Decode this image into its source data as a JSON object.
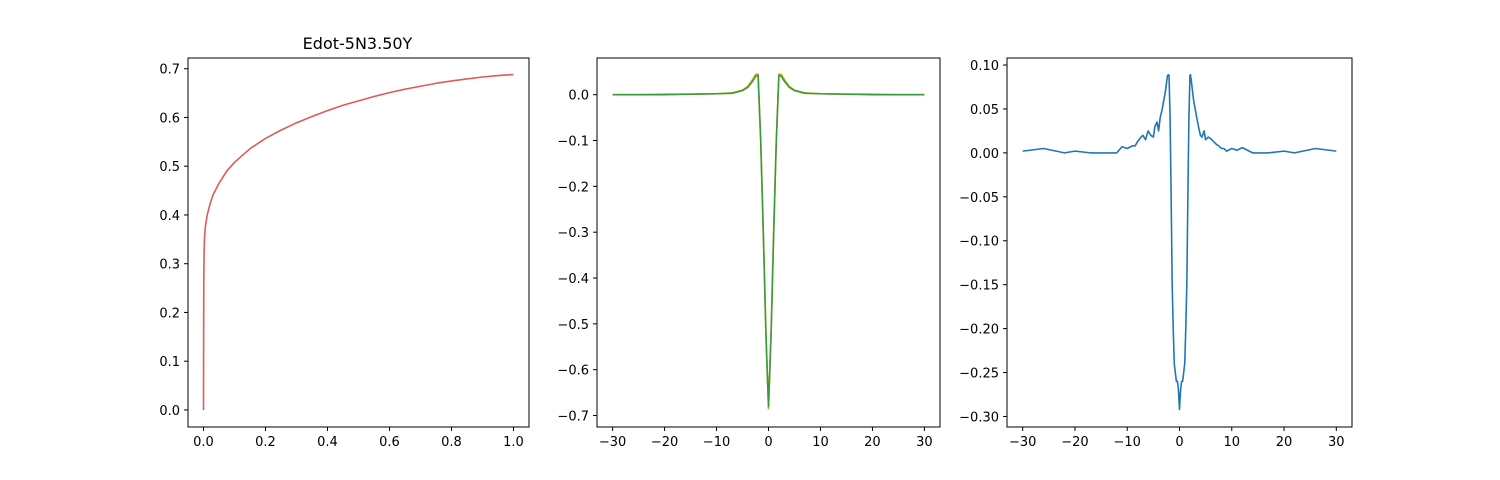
{
  "chart_data": [
    {
      "type": "line",
      "title": "Edot-5N3.50Y",
      "xlim": [
        -0.05,
        1.05
      ],
      "ylim": [
        -0.035,
        0.722
      ],
      "xticks": [
        0.0,
        0.2,
        0.4,
        0.6,
        0.8,
        1.0
      ],
      "xtick_labels": [
        "0.0",
        "0.2",
        "0.4",
        "0.6",
        "0.8",
        "1.0"
      ],
      "yticks": [
        0.0,
        0.1,
        0.2,
        0.3,
        0.4,
        0.5,
        0.6,
        0.7
      ],
      "ytick_labels": [
        "0.0",
        "0.1",
        "0.2",
        "0.3",
        "0.4",
        "0.5",
        "0.6",
        "0.7"
      ],
      "series": [
        {
          "color": "#e05a5a",
          "x": [
            0.0,
            0.0005,
            0.001,
            0.002,
            0.003,
            0.005,
            0.008,
            0.012,
            0.02,
            0.03,
            0.05,
            0.075,
            0.1,
            0.15,
            0.2,
            0.25,
            0.3,
            0.35,
            0.4,
            0.45,
            0.5,
            0.55,
            0.6,
            0.65,
            0.7,
            0.75,
            0.8,
            0.85,
            0.9,
            0.95,
            1.0
          ],
          "y": [
            0.0,
            0.18,
            0.27,
            0.325,
            0.35,
            0.37,
            0.385,
            0.4,
            0.42,
            0.44,
            0.465,
            0.49,
            0.508,
            0.536,
            0.557,
            0.574,
            0.589,
            0.602,
            0.614,
            0.625,
            0.634,
            0.643,
            0.651,
            0.658,
            0.664,
            0.67,
            0.675,
            0.679,
            0.683,
            0.686,
            0.688
          ]
        }
      ]
    },
    {
      "type": "line",
      "xlim": [
        -33.0,
        33.0
      ],
      "ylim": [
        -0.725,
        0.08
      ],
      "xticks": [
        -30,
        -20,
        -10,
        0,
        10,
        20,
        30
      ],
      "xtick_labels": [
        "−30",
        "−20",
        "−10",
        "0",
        "10",
        "20",
        "30"
      ],
      "yticks": [
        0.0,
        -0.1,
        -0.2,
        -0.3,
        -0.4,
        -0.5,
        -0.6,
        -0.7
      ],
      "ytick_labels": [
        "0.0",
        "−0.1",
        "−0.2",
        "−0.3",
        "−0.4",
        "−0.5",
        "−0.6",
        "−0.7"
      ],
      "series": [
        {
          "color": "#d6a51a",
          "x": [
            -30,
            -25,
            -20,
            -15,
            -10,
            -7,
            -5,
            -4,
            -3,
            -2.5,
            -2,
            -1.5,
            -1,
            -0.5,
            0,
            0.5,
            1,
            1.5,
            2,
            2.5,
            3,
            4,
            5,
            7,
            10,
            15,
            20,
            25,
            30
          ],
          "y": [
            0.0,
            0.0,
            0.001,
            0.001,
            0.002,
            0.004,
            0.01,
            0.018,
            0.034,
            0.044,
            0.045,
            -0.1,
            -0.3,
            -0.52,
            -0.685,
            -0.52,
            -0.3,
            -0.1,
            0.045,
            0.044,
            0.034,
            0.018,
            0.01,
            0.004,
            0.002,
            0.001,
            0.001,
            0.0,
            0.0
          ]
        },
        {
          "color": "#3a9a3a",
          "x": [
            -30,
            -25,
            -20,
            -15,
            -10,
            -7,
            -5,
            -4,
            -3,
            -2.5,
            -2,
            -1.5,
            -1,
            -0.5,
            0,
            0.5,
            1,
            1.5,
            2,
            2.5,
            3,
            4,
            5,
            7,
            10,
            15,
            20,
            25,
            30
          ],
          "y": [
            0.0,
            0.0,
            0.0,
            0.001,
            0.002,
            0.003,
            0.009,
            0.016,
            0.03,
            0.04,
            0.042,
            -0.1,
            -0.3,
            -0.52,
            -0.68,
            -0.52,
            -0.3,
            -0.1,
            0.042,
            0.04,
            0.03,
            0.016,
            0.009,
            0.003,
            0.002,
            0.001,
            0.0,
            0.0,
            0.0
          ]
        }
      ]
    },
    {
      "type": "line",
      "xlim": [
        -33.0,
        33.0
      ],
      "ylim": [
        -0.312,
        0.108
      ],
      "xticks": [
        -30,
        -20,
        -10,
        0,
        10,
        20,
        30
      ],
      "xtick_labels": [
        "−30",
        "−20",
        "−10",
        "0",
        "10",
        "20",
        "30"
      ],
      "yticks": [
        0.1,
        0.05,
        0.0,
        -0.05,
        -0.1,
        -0.15,
        -0.2,
        -0.25,
        -0.3
      ],
      "ytick_labels": [
        "0.10",
        "0.05",
        "0.00",
        "−0.05",
        "−0.10",
        "−0.15",
        "−0.20",
        "−0.25",
        "−0.30"
      ],
      "series": [
        {
          "color": "#1f77b4",
          "x": [
            -30,
            -26,
            -22,
            -20,
            -17,
            -14,
            -12,
            -11,
            -10,
            -9,
            -8.5,
            -8,
            -7.5,
            -7,
            -6.5,
            -6,
            -5.5,
            -5,
            -4.7,
            -4.3,
            -4,
            -3.7,
            -3.3,
            -3,
            -2.7,
            -2.3,
            -2.1,
            -2,
            -1.8,
            -1.6,
            -1.4,
            -1.2,
            -1.0,
            -0.8,
            -0.6,
            -0.4,
            -0.2,
            0,
            0.2,
            0.4,
            0.6,
            0.8,
            1.0,
            1.2,
            1.4,
            1.6,
            1.8,
            2,
            2.1,
            2.3,
            2.7,
            3,
            3.3,
            3.7,
            4,
            4.3,
            4.7,
            5,
            5.5,
            6,
            6.5,
            7,
            7.5,
            8,
            8.5,
            9,
            10,
            11,
            12,
            14,
            17,
            20,
            22,
            26,
            30
          ],
          "y": [
            0.002,
            0.005,
            0.0,
            0.002,
            0.0,
            0.0,
            0.0,
            0.007,
            0.005,
            0.008,
            0.008,
            0.013,
            0.017,
            0.02,
            0.015,
            0.025,
            0.02,
            0.018,
            0.03,
            0.035,
            0.025,
            0.04,
            0.05,
            0.06,
            0.07,
            0.088,
            0.089,
            0.088,
            0.04,
            -0.05,
            -0.15,
            -0.2,
            -0.24,
            -0.25,
            -0.26,
            -0.26,
            -0.27,
            -0.292,
            -0.27,
            -0.26,
            -0.26,
            -0.25,
            -0.24,
            -0.2,
            -0.15,
            -0.05,
            0.04,
            0.088,
            0.089,
            0.08,
            0.06,
            0.05,
            0.04,
            0.028,
            0.02,
            0.018,
            0.025,
            0.015,
            0.018,
            0.016,
            0.013,
            0.01,
            0.008,
            0.005,
            0.005,
            0.002,
            0.005,
            0.003,
            0.006,
            0.0,
            0.0,
            0.002,
            0.0,
            0.005,
            0.002
          ]
        }
      ]
    }
  ]
}
